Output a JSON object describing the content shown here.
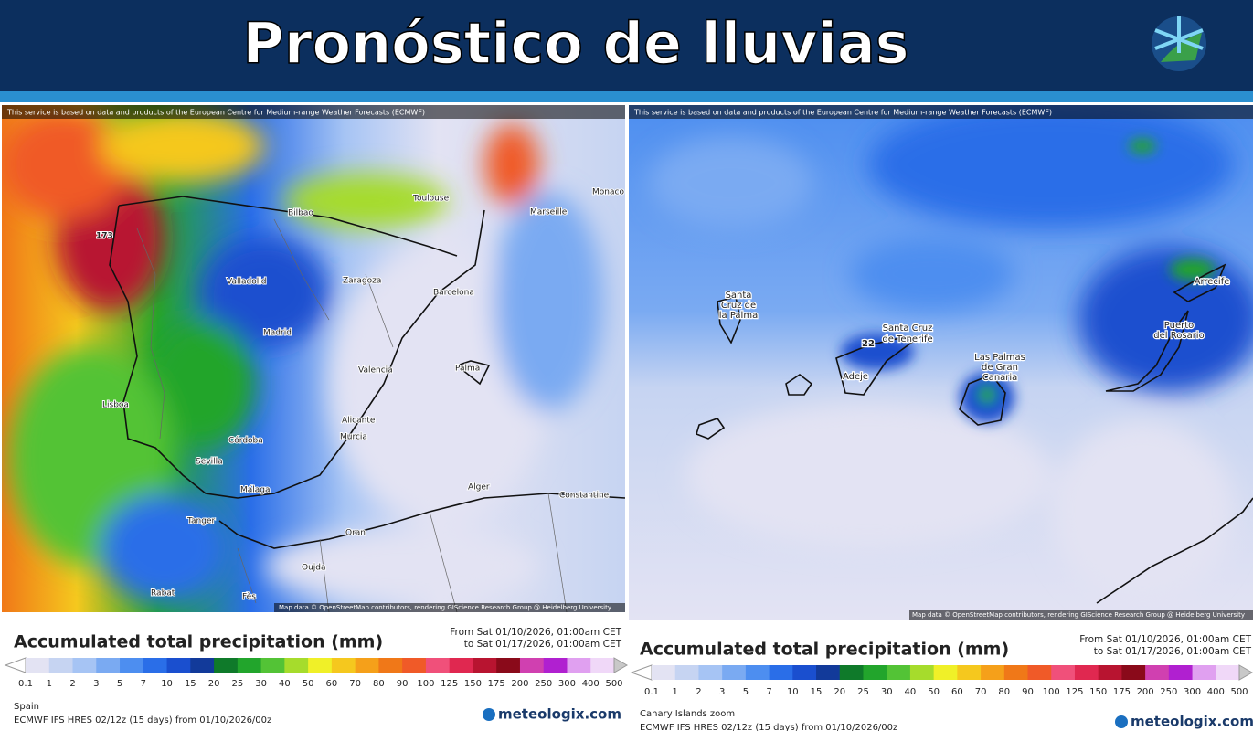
{
  "header": {
    "title": "Pronóstico de lluvias"
  },
  "panels": [
    {
      "notice": "This service is based on data and products of the European Centre for Medium-range Weather Forecasts (ECMWF)",
      "map_labels": [
        "173",
        "Bilbao",
        "Toulouse",
        "Marseille",
        "Monaco",
        "Valladolid",
        "Zaragoza",
        "Barcelona",
        "Madrid",
        "Valencia",
        "Palma",
        "Lisboa",
        "Alicante",
        "Murcia",
        "Córdoba",
        "Sevilla",
        "Málaga",
        "Alger",
        "Constantine",
        "Tanger",
        "Oran",
        "Oujda",
        "Rabat",
        "Fès"
      ],
      "attribution": "Map data © OpenStreetMap contributors, rendering GIScience Research Group @ Heidelberg University",
      "legend_title": "Accumulated total precipitation (mm)",
      "date_from": "From Sat 01/10/2026, 01:00am CET",
      "date_to": "to Sat 01/17/2026, 01:00am CET",
      "scale_labels": [
        "0.1",
        "1",
        "2",
        "3",
        "5",
        "7",
        "10",
        "15",
        "20",
        "25",
        "30",
        "40",
        "50",
        "60",
        "70",
        "80",
        "90",
        "100",
        "125",
        "150",
        "175",
        "200",
        "250",
        "300",
        "400",
        "500"
      ],
      "region": "Spain",
      "model": "ECMWF IFS HRES 02/12z (15 days) from 01/10/2026/00z",
      "brand": "meteologix.com"
    },
    {
      "notice": "This service is based on data and products of the European Centre for Medium-range Weather Forecasts (ECMWF)",
      "map_labels": [
        "Santa",
        "Cruz de",
        "la Palma",
        "22",
        "Santa Cruz",
        "de Tenerife",
        "Adeje",
        "Las Palmas",
        "de Gran",
        "Canaria",
        "Arrecife",
        "Puerto",
        "del Rosario"
      ],
      "attribution": "Map data © OpenStreetMap contributors, rendering GIScience Research Group @ Heidelberg University",
      "legend_title": "Accumulated total precipitation (mm)",
      "date_from": "From Sat 01/10/2026, 01:00am CET",
      "date_to": "to Sat 01/17/2026, 01:00am CET",
      "scale_labels": [
        "0.1",
        "1",
        "2",
        "3",
        "5",
        "7",
        "10",
        "15",
        "20",
        "25",
        "30",
        "40",
        "50",
        "60",
        "70",
        "80",
        "90",
        "100",
        "125",
        "150",
        "175",
        "200",
        "250",
        "300",
        "400",
        "500"
      ],
      "region": "Canary Islands zoom",
      "model": "ECMWF IFS HRES 02/12z (15 days) from 01/10/2026/00z",
      "brand": "meteologix.com"
    }
  ],
  "scale_colors": [
    "#ffffff",
    "#e3e3f3",
    "#c6d4f2",
    "#a6c4f4",
    "#7aaaf2",
    "#4d8ef0",
    "#2a6ee8",
    "#1a4fcf",
    "#123a9a",
    "#0f7a2a",
    "#22a52c",
    "#53c336",
    "#a6dc2c",
    "#f0f028",
    "#f5c81e",
    "#f5a01a",
    "#f07818",
    "#f05a28",
    "#f0507a",
    "#e02850",
    "#b81430",
    "#8a0a1a",
    "#d040b0",
    "#b020d0",
    "#e0a0f0",
    "#f0d8f8",
    "#c8c8c8"
  ]
}
